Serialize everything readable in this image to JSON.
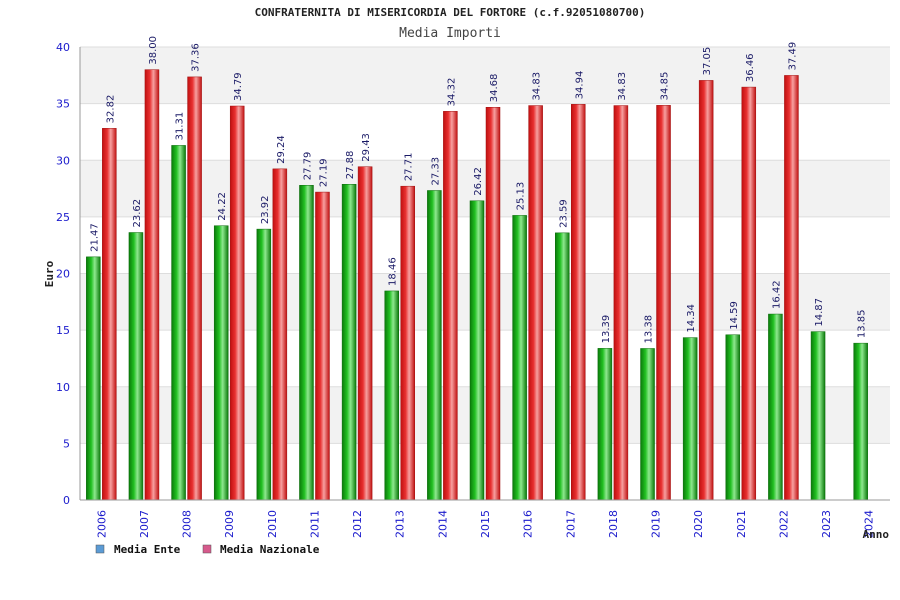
{
  "chart_data": {
    "type": "bar",
    "title": "CONFRATERNITA DI MISERICORDIA DEL FORTORE (c.f.92051080700)",
    "subtitle": "Media Importi",
    "xlabel": "Anno",
    "ylabel": "Euro",
    "ylim": [
      0,
      40
    ],
    "yticks": [
      0,
      5,
      10,
      15,
      20,
      25,
      30,
      35,
      40
    ],
    "grid": true,
    "legend_position": "bottom-left",
    "categories": [
      "2006",
      "2007",
      "2008",
      "2009",
      "2010",
      "2011",
      "2012",
      "2013",
      "2014",
      "2015",
      "2016",
      "2017",
      "2018",
      "2019",
      "2020",
      "2021",
      "2022",
      "2023",
      "2024"
    ],
    "series": [
      {
        "name": "Media Ente",
        "legend_color": "#5b9bd5",
        "bar_color": "#1aa01a",
        "values": [
          21.47,
          23.62,
          31.31,
          24.22,
          23.92,
          27.79,
          27.88,
          18.46,
          27.33,
          26.42,
          25.13,
          23.59,
          13.39,
          13.38,
          14.34,
          14.59,
          16.42,
          14.87,
          13.85
        ],
        "labels": [
          "21.47",
          "23.62",
          "31.31",
          "24.22",
          "23.92",
          "27.79",
          "27.88",
          "18.46",
          "27.33",
          "26.42",
          "25.13",
          "23.59",
          "13.39",
          "13.38",
          "14.34",
          "14.59",
          "16.42",
          "14.87",
          "13.85"
        ]
      },
      {
        "name": "Media Nazionale",
        "legend_color": "#d65a8c",
        "bar_color": "#e02020",
        "values": [
          32.82,
          38.0,
          37.36,
          34.79,
          29.24,
          27.19,
          29.43,
          27.71,
          34.32,
          34.68,
          34.83,
          34.94,
          34.83,
          34.85,
          37.05,
          36.46,
          37.49,
          null,
          null
        ],
        "labels": [
          "32.82",
          "38.00",
          "37.36",
          "34.79",
          "29.24",
          "27.19",
          "29.43",
          "27.71",
          "34.32",
          "34.68",
          "34.83",
          "34.94",
          "34.83",
          "34.85",
          "37.05",
          "36.46",
          "37.49",
          "",
          ""
        ]
      }
    ]
  }
}
